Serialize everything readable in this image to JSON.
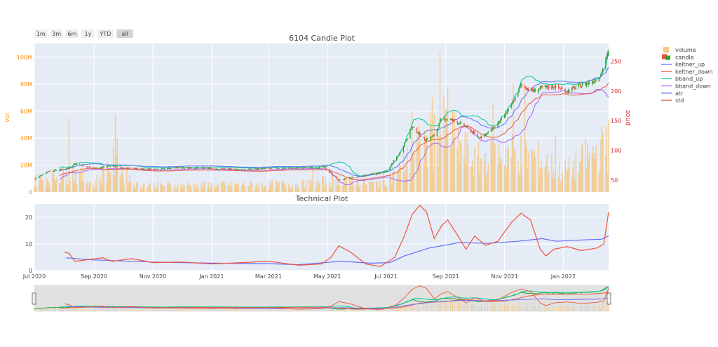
{
  "range_selector": {
    "buttons": [
      "1m",
      "3m",
      "6m",
      "1y",
      "YTD",
      "all"
    ],
    "active": "all"
  },
  "legend": [
    {
      "name": "volume",
      "color": "#f4c98a",
      "kind": "bar"
    },
    {
      "name": "candle",
      "color": "#2ca02c",
      "kind": "candle"
    },
    {
      "name": "keltner_up",
      "color": "#636efa",
      "kind": "line"
    },
    {
      "name": "keltner_down",
      "color": "#ef553b",
      "kind": "line"
    },
    {
      "name": "bband_up",
      "color": "#00cc96",
      "kind": "line"
    },
    {
      "name": "bband_down",
      "color": "#ab63fa",
      "kind": "line"
    },
    {
      "name": "atr",
      "color": "#636efa",
      "kind": "line"
    },
    {
      "name": "std",
      "color": "#ef553b",
      "kind": "line"
    }
  ],
  "colors": {
    "increasing": "#2ca02c",
    "decreasing": "#ef553b",
    "plot_bg": "#e5ecf6",
    "vol_axis": "#ff8c00",
    "price_axis": "#d62728"
  },
  "chart_data": [
    {
      "type": "candlestick",
      "title": "6104 Candle Plot",
      "ylabel": "vol",
      "y2label": "price",
      "x_start": "2020-07-01",
      "x_end": "2022-02-17",
      "vol_ticks": [
        {
          "value": 0,
          "label": "0"
        },
        {
          "value": 20000000,
          "label": "20M"
        },
        {
          "value": 40000000,
          "label": "40M"
        },
        {
          "value": 60000000,
          "label": "60M"
        },
        {
          "value": 80000000,
          "label": "80M"
        },
        {
          "value": 100000000,
          "label": "100M"
        }
      ],
      "vol_range": [
        0,
        110000000
      ],
      "price_ticks": [
        {
          "value": 50,
          "label": "50"
        },
        {
          "value": 100,
          "label": "100"
        },
        {
          "value": 150,
          "label": "150"
        },
        {
          "value": 200,
          "label": "200"
        },
        {
          "value": 250,
          "label": "250"
        }
      ],
      "price_range": [
        30,
        280
      ],
      "price_keypoints": [
        [
          "2020-07-01",
          52
        ],
        [
          "2020-07-15",
          65
        ],
        [
          "2020-08-05",
          70
        ],
        [
          "2020-08-12",
          78
        ],
        [
          "2020-09-01",
          70
        ],
        [
          "2020-09-20",
          74
        ],
        [
          "2020-10-01",
          70
        ],
        [
          "2020-11-01",
          69
        ],
        [
          "2020-12-01",
          71
        ],
        [
          "2021-01-01",
          70
        ],
        [
          "2021-02-01",
          68
        ],
        [
          "2021-03-10",
          70
        ],
        [
          "2021-04-15",
          71
        ],
        [
          "2021-04-28",
          72
        ],
        [
          "2021-05-12",
          50
        ],
        [
          "2021-06-10",
          58
        ],
        [
          "2021-07-01",
          64
        ],
        [
          "2021-07-15",
          95
        ],
        [
          "2021-07-28",
          140
        ],
        [
          "2021-08-10",
          118
        ],
        [
          "2021-08-20",
          125
        ],
        [
          "2021-08-28",
          155
        ],
        [
          "2021-09-10",
          150
        ],
        [
          "2021-09-22",
          140
        ],
        [
          "2021-10-05",
          122
        ],
        [
          "2021-10-15",
          130
        ],
        [
          "2021-10-28",
          150
        ],
        [
          "2021-11-08",
          175
        ],
        [
          "2021-11-18",
          210
        ],
        [
          "2021-12-01",
          200
        ],
        [
          "2021-12-10",
          205
        ],
        [
          "2021-12-22",
          208
        ],
        [
          "2022-01-05",
          200
        ],
        [
          "2022-01-20",
          210
        ],
        [
          "2022-01-30",
          215
        ],
        [
          "2022-02-08",
          225
        ],
        [
          "2022-02-17",
          265
        ]
      ],
      "volume_keypoints": [
        [
          "2020-07-01",
          8000000
        ],
        [
          "2020-08-10",
          14000000
        ],
        [
          "2020-09-01",
          6000000
        ],
        [
          "2020-09-20",
          22000000
        ],
        [
          "2020-10-15",
          5000000
        ],
        [
          "2021-01-01",
          5000000
        ],
        [
          "2021-04-15",
          6000000
        ],
        [
          "2021-05-10",
          9000000
        ],
        [
          "2021-06-20",
          6000000
        ],
        [
          "2021-07-10",
          12000000
        ],
        [
          "2021-08-01",
          30000000
        ],
        [
          "2021-09-01",
          45000000
        ],
        [
          "2021-10-01",
          22000000
        ],
        [
          "2021-11-01",
          30000000
        ],
        [
          "2021-12-01",
          26000000
        ],
        [
          "2022-01-01",
          14000000
        ],
        [
          "2022-02-17",
          35000000
        ]
      ],
      "volume_spikes": [
        [
          "2020-08-06",
          55000000
        ],
        [
          "2020-09-23",
          58000000
        ],
        [
          "2020-09-25",
          40000000
        ],
        [
          "2021-04-16",
          20000000
        ],
        [
          "2021-07-28",
          60000000
        ],
        [
          "2021-08-18",
          70000000
        ],
        [
          "2021-08-26",
          104000000
        ],
        [
          "2021-09-03",
          78000000
        ],
        [
          "2021-10-20",
          65000000
        ],
        [
          "2021-11-10",
          80000000
        ],
        [
          "2021-11-22",
          75000000
        ],
        [
          "2021-12-24",
          42000000
        ],
        [
          "2022-01-24",
          40000000
        ],
        [
          "2022-02-15",
          49000000
        ]
      ]
    },
    {
      "type": "line",
      "title": "Technical Plot",
      "ylabel": "",
      "y_range": [
        0,
        25
      ],
      "y_ticks": [
        0,
        10,
        20
      ],
      "series": [
        {
          "name": "atr",
          "color": "#636efa",
          "points": [
            [
              "2020-08-03",
              4.8
            ],
            [
              "2020-09-01",
              4.0
            ],
            [
              "2020-11-01",
              3.2
            ],
            [
              "2021-01-01",
              2.8
            ],
            [
              "2021-03-01",
              2.6
            ],
            [
              "2021-04-01",
              2.2
            ],
            [
              "2021-05-15",
              3.5
            ],
            [
              "2021-06-15",
              2.8
            ],
            [
              "2021-07-05",
              3.0
            ],
            [
              "2021-07-20",
              5.5
            ],
            [
              "2021-08-15",
              8.5
            ],
            [
              "2021-09-15",
              10.5
            ],
            [
              "2021-10-15",
              10.2
            ],
            [
              "2021-11-15",
              11.0
            ],
            [
              "2021-12-10",
              12.0
            ],
            [
              "2021-12-25",
              11.0
            ],
            [
              "2022-01-20",
              11.5
            ],
            [
              "2022-02-10",
              11.8
            ],
            [
              "2022-02-17",
              13.0
            ]
          ]
        },
        {
          "name": "std",
          "color": "#ef553b",
          "points": [
            [
              "2020-08-01",
              7.0
            ],
            [
              "2020-08-06",
              6.5
            ],
            [
              "2020-08-12",
              3.5
            ],
            [
              "2020-09-10",
              4.8
            ],
            [
              "2020-09-20",
              3.5
            ],
            [
              "2020-10-10",
              4.5
            ],
            [
              "2020-11-01",
              3.0
            ],
            [
              "2020-12-01",
              3.2
            ],
            [
              "2021-01-01",
              2.5
            ],
            [
              "2021-02-01",
              3.0
            ],
            [
              "2021-03-01",
              3.5
            ],
            [
              "2021-04-01",
              2.0
            ],
            [
              "2021-04-25",
              2.5
            ],
            [
              "2021-05-05",
              5.0
            ],
            [
              "2021-05-13",
              9.3
            ],
            [
              "2021-05-25",
              7.0
            ],
            [
              "2021-06-10",
              2.5
            ],
            [
              "2021-06-25",
              1.5
            ],
            [
              "2021-07-10",
              5.0
            ],
            [
              "2021-07-20",
              13.0
            ],
            [
              "2021-07-28",
              21.0
            ],
            [
              "2021-08-05",
              24.5
            ],
            [
              "2021-08-12",
              22.0
            ],
            [
              "2021-08-20",
              12.0
            ],
            [
              "2021-08-28",
              17.0
            ],
            [
              "2021-09-03",
              19.0
            ],
            [
              "2021-09-12",
              14.0
            ],
            [
              "2021-09-22",
              8.0
            ],
            [
              "2021-10-01",
              13.0
            ],
            [
              "2021-10-12",
              9.5
            ],
            [
              "2021-10-25",
              11.0
            ],
            [
              "2021-11-08",
              18.0
            ],
            [
              "2021-11-18",
              21.5
            ],
            [
              "2021-11-28",
              19.0
            ],
            [
              "2021-12-08",
              8.0
            ],
            [
              "2021-12-14",
              5.5
            ],
            [
              "2021-12-22",
              8.0
            ],
            [
              "2022-01-05",
              9.0
            ],
            [
              "2022-01-20",
              7.5
            ],
            [
              "2022-02-05",
              8.5
            ],
            [
              "2022-02-12",
              10.0
            ],
            [
              "2022-02-17",
              22.0
            ]
          ]
        }
      ],
      "x_ticks": [
        "Jul 2020",
        "Sep 2020",
        "Nov 2020",
        "Jan 2021",
        "Mar 2021",
        "May 2021",
        "Jul 2021",
        "Sep 2021",
        "Nov 2021",
        "Jan 2022"
      ],
      "x_tick_dates": [
        "2020-07-01",
        "2020-09-01",
        "2020-11-01",
        "2021-01-01",
        "2021-03-01",
        "2021-05-01",
        "2021-07-01",
        "2021-09-01",
        "2021-11-01",
        "2022-01-01"
      ]
    }
  ]
}
